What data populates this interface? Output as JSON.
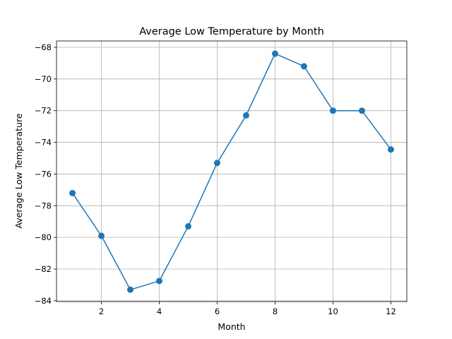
{
  "chart_data": {
    "type": "line",
    "title": "Average Low Temperature by Month",
    "xlabel": "Month",
    "ylabel": "Average Low Temperature",
    "xlim": [
      0.45,
      12.55
    ],
    "ylim": [
      -84.05,
      -67.6
    ],
    "x_ticks": [
      2,
      4,
      6,
      8,
      10,
      12
    ],
    "y_ticks": [
      -84,
      -82,
      -80,
      -78,
      -76,
      -74,
      -72,
      -70,
      -68
    ],
    "x_tick_labels": [
      "2",
      "4",
      "6",
      "8",
      "10",
      "12"
    ],
    "y_tick_labels": [
      "−84",
      "−82",
      "−80",
      "−78",
      "−76",
      "−74",
      "−72",
      "−70",
      "−68"
    ],
    "grid": true,
    "marker": "circle",
    "color": "#1f77b4",
    "series": [
      {
        "x": [
          1,
          2,
          3,
          4,
          5,
          6,
          7,
          8,
          9,
          10,
          11,
          12
        ],
        "values": [
          -77.2,
          -79.9,
          -83.3,
          -82.75,
          -79.3,
          -75.3,
          -72.3,
          -68.4,
          -69.2,
          -72.0,
          -72.0,
          -74.45
        ]
      }
    ]
  }
}
